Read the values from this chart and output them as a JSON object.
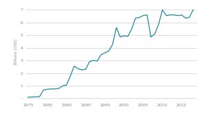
{
  "title": "",
  "ylabel": "Billions (USD)",
  "xlabel": "",
  "line_color": "#1a8a9a",
  "line_width": 0.9,
  "background_color": "#ffffff",
  "grid_color": "#cccccc",
  "tick_label_color": "#888888",
  "ylim": [
    -0.15,
    7.5
  ],
  "xlim": [
    1974.5,
    2019
  ],
  "yticks": [
    0,
    1,
    2,
    3,
    4,
    5,
    6,
    7
  ],
  "ytick_labels": [
    "-",
    "1",
    "2",
    "3",
    "4",
    "5",
    "6",
    "7"
  ],
  "xticks": [
    1975,
    1980,
    1985,
    1990,
    1995,
    2000,
    2005,
    2010,
    2015
  ],
  "data": [
    [
      1975,
      0.1
    ],
    [
      1976,
      0.11
    ],
    [
      1977,
      0.13
    ],
    [
      1978,
      0.14
    ],
    [
      1979,
      0.65
    ],
    [
      1980,
      0.72
    ],
    [
      1981,
      0.75
    ],
    [
      1982,
      0.75
    ],
    [
      1983,
      0.78
    ],
    [
      1984,
      1.0
    ],
    [
      1985,
      1.05
    ],
    [
      1986,
      1.75
    ],
    [
      1987,
      2.55
    ],
    [
      1988,
      2.35
    ],
    [
      1989,
      2.25
    ],
    [
      1990,
      2.3
    ],
    [
      1991,
      2.9
    ],
    [
      1992,
      3.0
    ],
    [
      1993,
      2.95
    ],
    [
      1994,
      3.45
    ],
    [
      1995,
      3.6
    ],
    [
      1996,
      3.75
    ],
    [
      1997,
      4.25
    ],
    [
      1998,
      5.6
    ],
    [
      1999,
      4.85
    ],
    [
      2000,
      4.95
    ],
    [
      2001,
      4.9
    ],
    [
      2002,
      5.5
    ],
    [
      2003,
      6.35
    ],
    [
      2004,
      6.4
    ],
    [
      2005,
      6.55
    ],
    [
      2006,
      6.6
    ],
    [
      2007,
      4.85
    ],
    [
      2008,
      5.1
    ],
    [
      2009,
      5.85
    ],
    [
      2010,
      7.0
    ],
    [
      2011,
      6.55
    ],
    [
      2012,
      6.6
    ],
    [
      2013,
      6.6
    ],
    [
      2014,
      6.55
    ],
    [
      2015,
      6.6
    ],
    [
      2016,
      6.35
    ],
    [
      2017,
      6.4
    ],
    [
      2018,
      7.0
    ]
  ]
}
